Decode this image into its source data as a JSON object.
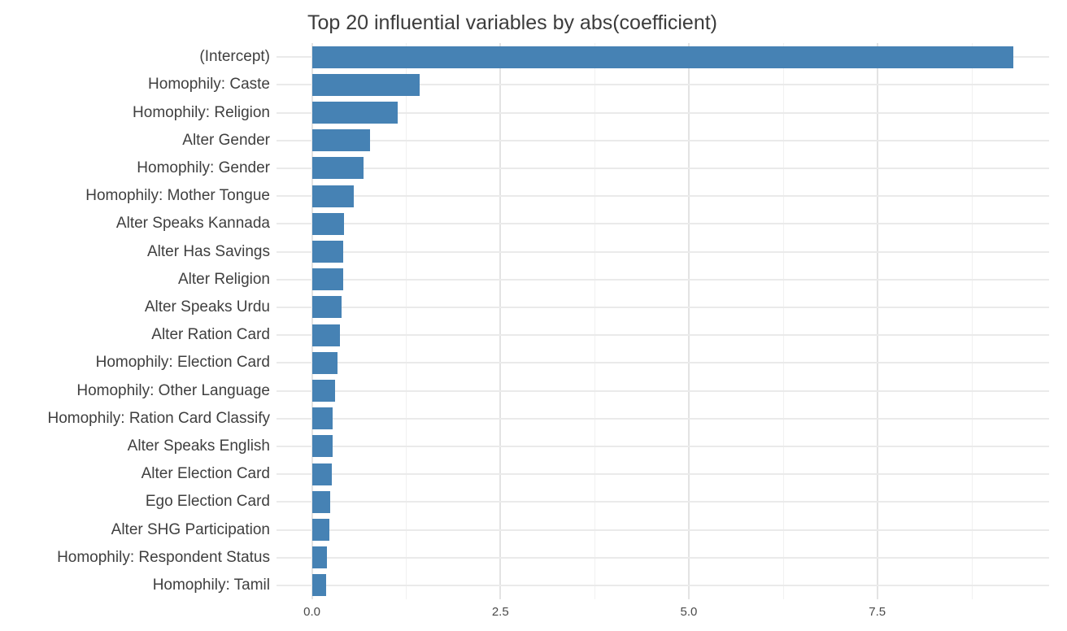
{
  "figure": {
    "title": "Top 20 influential variables by abs(coefficient)"
  },
  "chart_data": {
    "type": "bar",
    "orientation": "horizontal",
    "title": "Top 20 influential variables by abs(coefficient)",
    "xlabel": "",
    "ylabel": "",
    "legend": "none",
    "grid": "on",
    "bar_color": "#4682b4",
    "major_grid_color": "#e3e3e3",
    "minor_grid_color": "#f1f1f1",
    "row_grid_color": "#eaeaea",
    "title_color": "#3c3c3c",
    "axis_text_color": "#3f3f3f",
    "xlim": [
      -0.47,
      9.78
    ],
    "x_tick_labels": [
      "0.0",
      "2.5",
      "5.0",
      "7.5"
    ],
    "x_tick_values": [
      0,
      2.5,
      5,
      7.5
    ],
    "x_minor_values": [
      1.25,
      3.75,
      6.25,
      8.75
    ],
    "categories": [
      "(Intercept)",
      "Homophily: Caste",
      "Homophily: Religion",
      "Alter Gender",
      "Homophily: Gender",
      "Homophily: Mother Tongue",
      "Alter Speaks Kannada",
      "Alter Has Savings",
      "Alter Religion",
      "Alter Speaks Urdu",
      "Alter Ration Card",
      "Homophily: Election Card",
      "Homophily: Other Language",
      "Homophily: Ration Card Classify",
      "Alter Speaks English",
      "Alter Election Card",
      "Ego Election Card",
      "Alter SHG Participation",
      "Homophily: Respondent Status",
      "Homophily: Tamil"
    ],
    "values": [
      9.31,
      1.43,
      1.14,
      0.77,
      0.68,
      0.55,
      0.43,
      0.42,
      0.41,
      0.39,
      0.37,
      0.34,
      0.31,
      0.28,
      0.27,
      0.26,
      0.24,
      0.23,
      0.2,
      0.19
    ]
  }
}
